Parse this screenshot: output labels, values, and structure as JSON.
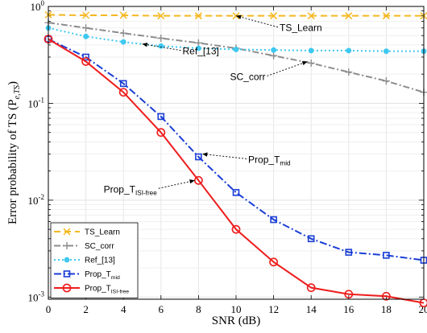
{
  "chart_data": {
    "type": "line",
    "xlabel": "SNR (dB)",
    "ylabel": "Error probability of TS (P",
    "ylabel_sub": "e,TS",
    "ylabel_close": ")",
    "x": [
      0,
      2,
      4,
      6,
      8,
      10,
      12,
      14,
      16,
      18,
      20
    ],
    "x_ticks": [
      "0",
      "2",
      "4",
      "6",
      "8",
      "10",
      "12",
      "14",
      "16",
      "18",
      "20"
    ],
    "xlim": [
      0,
      20
    ],
    "ylim": [
      0.00095,
      1.0
    ],
    "yscale": "log",
    "y_ticks": [
      {
        "value": 1,
        "base": "10",
        "exp": "0"
      },
      {
        "value": 0.1,
        "base": "10",
        "exp": "-1"
      },
      {
        "value": 0.01,
        "base": "10",
        "exp": "-2"
      },
      {
        "value": 0.001,
        "base": "10",
        "exp": "-3"
      }
    ],
    "grid": true,
    "legend_position": "bottom-left",
    "series": [
      {
        "name": "TS_Learn",
        "color": "#f5b820",
        "dash": "8,5",
        "marker": "x",
        "x": [
          0,
          2,
          4,
          6,
          8,
          10,
          12,
          14,
          16,
          18,
          20
        ],
        "values": [
          0.82,
          0.81,
          0.81,
          0.8,
          0.8,
          0.8,
          0.8,
          0.8,
          0.8,
          0.8,
          0.8
        ]
      },
      {
        "name": "SC_corr",
        "color": "#8c8c8c",
        "dash": "8,3,2,3",
        "marker": "plus",
        "x": [
          0,
          2,
          4,
          6,
          8,
          10,
          12,
          14,
          16,
          18,
          20
        ],
        "values": [
          0.68,
          0.6,
          0.53,
          0.47,
          0.42,
          0.37,
          0.31,
          0.26,
          0.21,
          0.17,
          0.13
        ]
      },
      {
        "name": "Ref_[13]",
        "color": "#3ec8f0",
        "dash": "2,3",
        "marker": "dot",
        "x": [
          0,
          2,
          4,
          6,
          8,
          10,
          12,
          14,
          16,
          18,
          20
        ],
        "values": [
          0.6,
          0.49,
          0.43,
          0.39,
          0.37,
          0.36,
          0.355,
          0.35,
          0.35,
          0.345,
          0.345
        ]
      },
      {
        "name": "Prop_T",
        "name_sub": "mid",
        "color": "#1a3ed6",
        "dash": "9,3,2,3",
        "marker": "square",
        "x": [
          0,
          2,
          4,
          6,
          8,
          10,
          12,
          14,
          16,
          18,
          20
        ],
        "values": [
          0.46,
          0.3,
          0.16,
          0.073,
          0.028,
          0.012,
          0.0063,
          0.004,
          0.0029,
          0.0027,
          0.0024
        ]
      },
      {
        "name": "Prop_T",
        "name_sub": "ISI-free",
        "color": "#ee1c1c",
        "dash": "",
        "marker": "circle",
        "x": [
          0,
          2,
          4,
          6,
          8,
          10,
          12,
          14,
          16,
          18,
          20
        ],
        "values": [
          0.46,
          0.27,
          0.13,
          0.05,
          0.016,
          0.005,
          0.0023,
          0.00125,
          0.00107,
          0.00102,
          0.00087
        ]
      }
    ],
    "annotations": [
      {
        "text": "TS_Learn",
        "sub": "",
        "arrow_x": 10,
        "arrow_y": 0.8,
        "text_side": "right"
      },
      {
        "text": "Ref_[13]",
        "sub": "",
        "arrow_x": 5,
        "arrow_y": 0.41,
        "text_side": "right"
      },
      {
        "text": "SC_corr",
        "sub": "",
        "arrow_x": 13.8,
        "arrow_y": 0.27,
        "text_side": "left"
      },
      {
        "text": "Prop_T",
        "sub": "mid",
        "arrow_x": 8.2,
        "arrow_y": 0.03,
        "text_side": "right"
      },
      {
        "text": "Prop_T",
        "sub": "ISI-free",
        "arrow_x": 7.8,
        "arrow_y": 0.016,
        "text_side": "left"
      }
    ]
  }
}
